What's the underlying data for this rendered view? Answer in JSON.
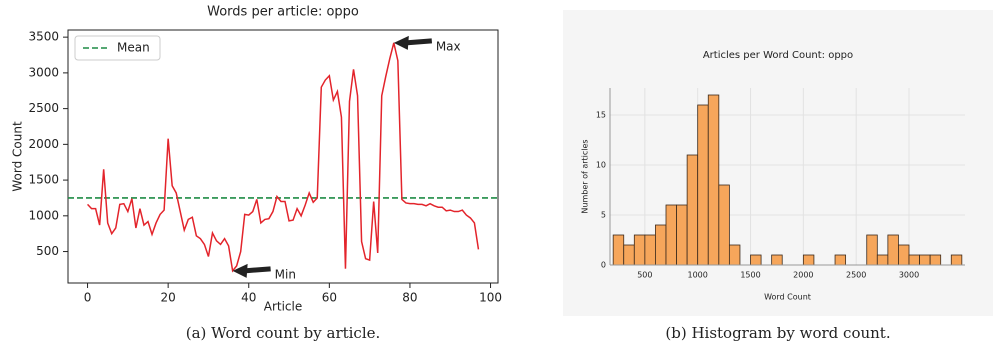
{
  "chart_data": [
    {
      "type": "line",
      "title": "Words per article: oppo",
      "xlabel": "Article",
      "ylabel": "Word Count",
      "caption": "(a) Word count by article.",
      "x": [
        0,
        1,
        2,
        3,
        4,
        5,
        6,
        7,
        8,
        9,
        10,
        11,
        12,
        13,
        14,
        15,
        16,
        17,
        18,
        19,
        20,
        21,
        22,
        23,
        24,
        25,
        26,
        27,
        28,
        29,
        30,
        31,
        32,
        33,
        34,
        35,
        36,
        37,
        38,
        39,
        40,
        41,
        42,
        43,
        44,
        45,
        46,
        47,
        48,
        49,
        50,
        51,
        52,
        53,
        54,
        55,
        56,
        57,
        58,
        59,
        60,
        61,
        62,
        63,
        64,
        65,
        66,
        67,
        68,
        69,
        70,
        71,
        72,
        73,
        74,
        75,
        76,
        77,
        78,
        79,
        80,
        81,
        82,
        83,
        84,
        85,
        86,
        87,
        88,
        89,
        90,
        91,
        92,
        93,
        94,
        95,
        96,
        97
      ],
      "series": [
        {
          "color": "#e3242b",
          "values": [
            1160,
            1100,
            1100,
            870,
            1650,
            900,
            750,
            830,
            1160,
            1170,
            1060,
            1240,
            830,
            1100,
            870,
            920,
            740,
            900,
            1020,
            1080,
            2080,
            1420,
            1320,
            1060,
            800,
            950,
            980,
            720,
            680,
            600,
            430,
            760,
            650,
            600,
            680,
            580,
            230,
            300,
            500,
            1020,
            1010,
            1060,
            1230,
            900,
            950,
            960,
            1060,
            1270,
            1200,
            1200,
            930,
            940,
            1100,
            1000,
            1150,
            1320,
            1190,
            1250,
            2800,
            2900,
            2960,
            2620,
            2740,
            2380,
            260,
            2600,
            3050,
            2680,
            640,
            400,
            380,
            1200,
            480,
            2680,
            2950,
            3200,
            3420,
            3170,
            1230,
            1180,
            1170,
            1170,
            1160,
            1160,
            1140,
            1170,
            1140,
            1120,
            1120,
            1070,
            1080,
            1060,
            1060,
            1080,
            1010,
            970,
            900,
            530
          ]
        }
      ],
      "reference_line": {
        "name": "Mean",
        "value": 1250,
        "color": "#1e8c45"
      },
      "legend": "upper left",
      "annotations": [
        {
          "text": "Max",
          "x": 76,
          "y": 3420
        },
        {
          "text": "Min",
          "x": 36,
          "y": 230
        }
      ],
      "xlim": [
        -4.85,
        101.85
      ],
      "ylim": [
        60,
        3600
      ],
      "xticks": [
        0,
        20,
        40,
        60,
        80,
        100
      ],
      "yticks": [
        500,
        1000,
        1500,
        2000,
        2500,
        3000,
        3500
      ],
      "grid": false
    },
    {
      "type": "histogram",
      "title": "Articles per Word Count: oppo",
      "xlabel": "Word Count",
      "ylabel": "Number of articles",
      "caption": "(b) Histogram by word count.",
      "bins": [
        200,
        300,
        400,
        500,
        600,
        700,
        800,
        900,
        1000,
        1100,
        1200,
        1300,
        1400,
        1500,
        1600,
        1700,
        1800,
        1900,
        2000,
        2100,
        2200,
        2300,
        2400,
        2500,
        2600,
        2700,
        2800,
        2900,
        3000,
        3100,
        3200,
        3300,
        3400,
        3500
      ],
      "counts": [
        3,
        2,
        3,
        3,
        4,
        6,
        6,
        11,
        16,
        17,
        8,
        2,
        0,
        1,
        0,
        1,
        0,
        0,
        1,
        0,
        0,
        1,
        0,
        0,
        3,
        1,
        3,
        2,
        1,
        1,
        1,
        0,
        1
      ],
      "color": "#f6a65b",
      "edge_color": "#3b2a1c",
      "background": "#f5f5f5",
      "xlim": [
        170,
        3530
      ],
      "ylim": [
        0,
        17.7
      ],
      "xticks": [
        500,
        1000,
        1500,
        2000,
        2500,
        3000
      ],
      "yticks": [
        0,
        5,
        10,
        15
      ],
      "grid": true
    }
  ]
}
